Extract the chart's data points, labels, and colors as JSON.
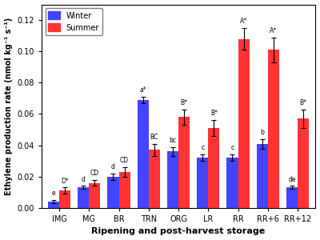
{
  "categories": [
    "IMG",
    "MG",
    "BR",
    "TRN",
    "ORG",
    "LR",
    "RR",
    "RR+6",
    "RR+12"
  ],
  "winter_values": [
    0.004,
    0.013,
    0.02,
    0.069,
    0.036,
    0.032,
    0.032,
    0.041,
    0.013
  ],
  "summer_values": [
    0.011,
    0.016,
    0.023,
    0.037,
    0.058,
    0.051,
    0.108,
    0.101,
    0.057
  ],
  "winter_errors": [
    0.001,
    0.001,
    0.002,
    0.002,
    0.003,
    0.002,
    0.002,
    0.003,
    0.001
  ],
  "summer_errors": [
    0.002,
    0.002,
    0.003,
    0.004,
    0.005,
    0.005,
    0.007,
    0.008,
    0.006
  ],
  "winter_labels": [
    "e",
    "d",
    "d",
    "a*",
    "bc",
    "c",
    "c",
    "b",
    "de"
  ],
  "summer_labels": [
    "D*",
    "CD",
    "CD",
    "BC",
    "B*",
    "B*",
    "A*",
    "A*",
    "B*"
  ],
  "winter_color": "#4444FF",
  "summer_color": "#FF3333",
  "ylabel": "Ethylene production rate (nmol kg⁻¹ s⁻¹)",
  "xlabel": "Ripening and post-harvest storage",
  "ylim": [
    0,
    0.13
  ],
  "yticks": [
    0.0,
    0.02,
    0.04,
    0.06,
    0.08,
    0.1,
    0.12
  ],
  "legend_labels": [
    "Winter",
    "Summer"
  ],
  "bar_width": 0.38,
  "figsize": [
    4.0,
    3.0
  ],
  "dpi": 100,
  "background_color": "#ffffff"
}
